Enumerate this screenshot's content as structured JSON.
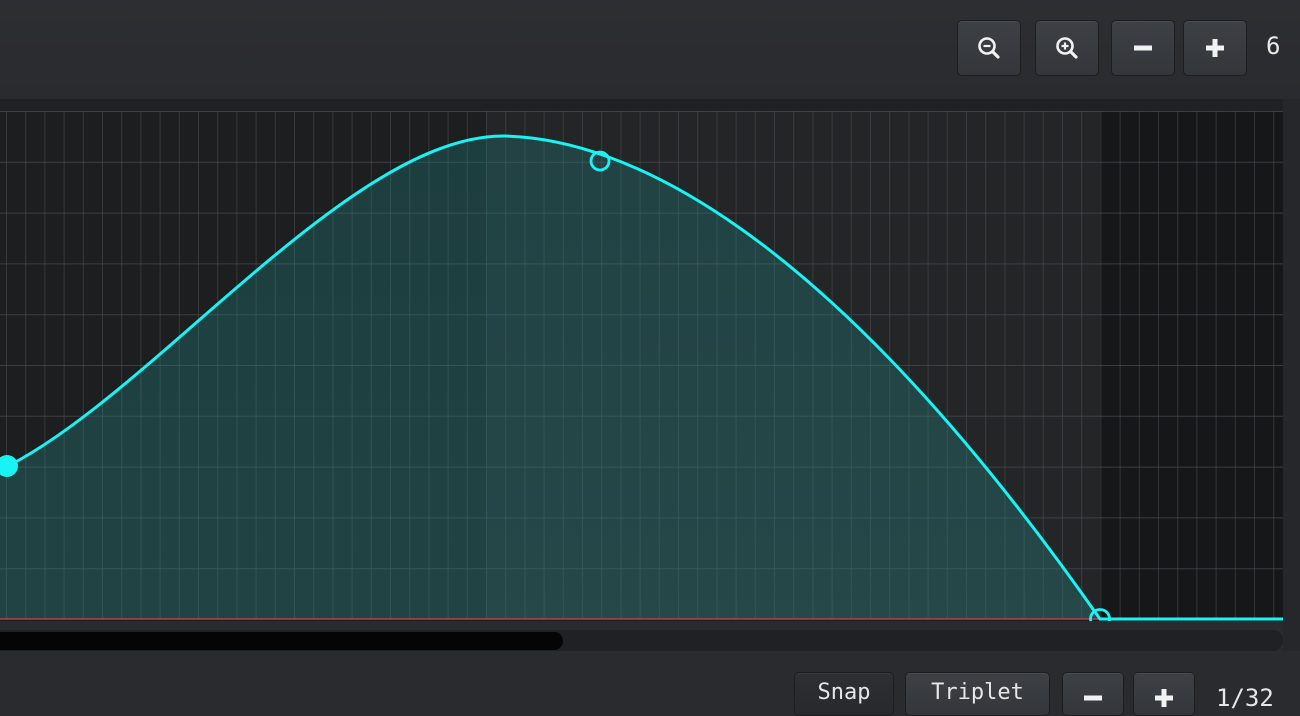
{
  "toolbar": {
    "zoom_value": "6",
    "buttons": [
      {
        "name": "zoom-out-icon"
      },
      {
        "name": "zoom-in-icon"
      },
      {
        "name": "minus-icon"
      },
      {
        "name": "plus-icon"
      }
    ]
  },
  "bottom": {
    "snap_label": "Snap",
    "triplet_label": "Triplet",
    "grid_value": "1/32"
  },
  "colors": {
    "curve": "#19f3f3",
    "fill": "#1f7f7f",
    "background": "#1b1c1d",
    "baseline": "#b04646"
  }
}
